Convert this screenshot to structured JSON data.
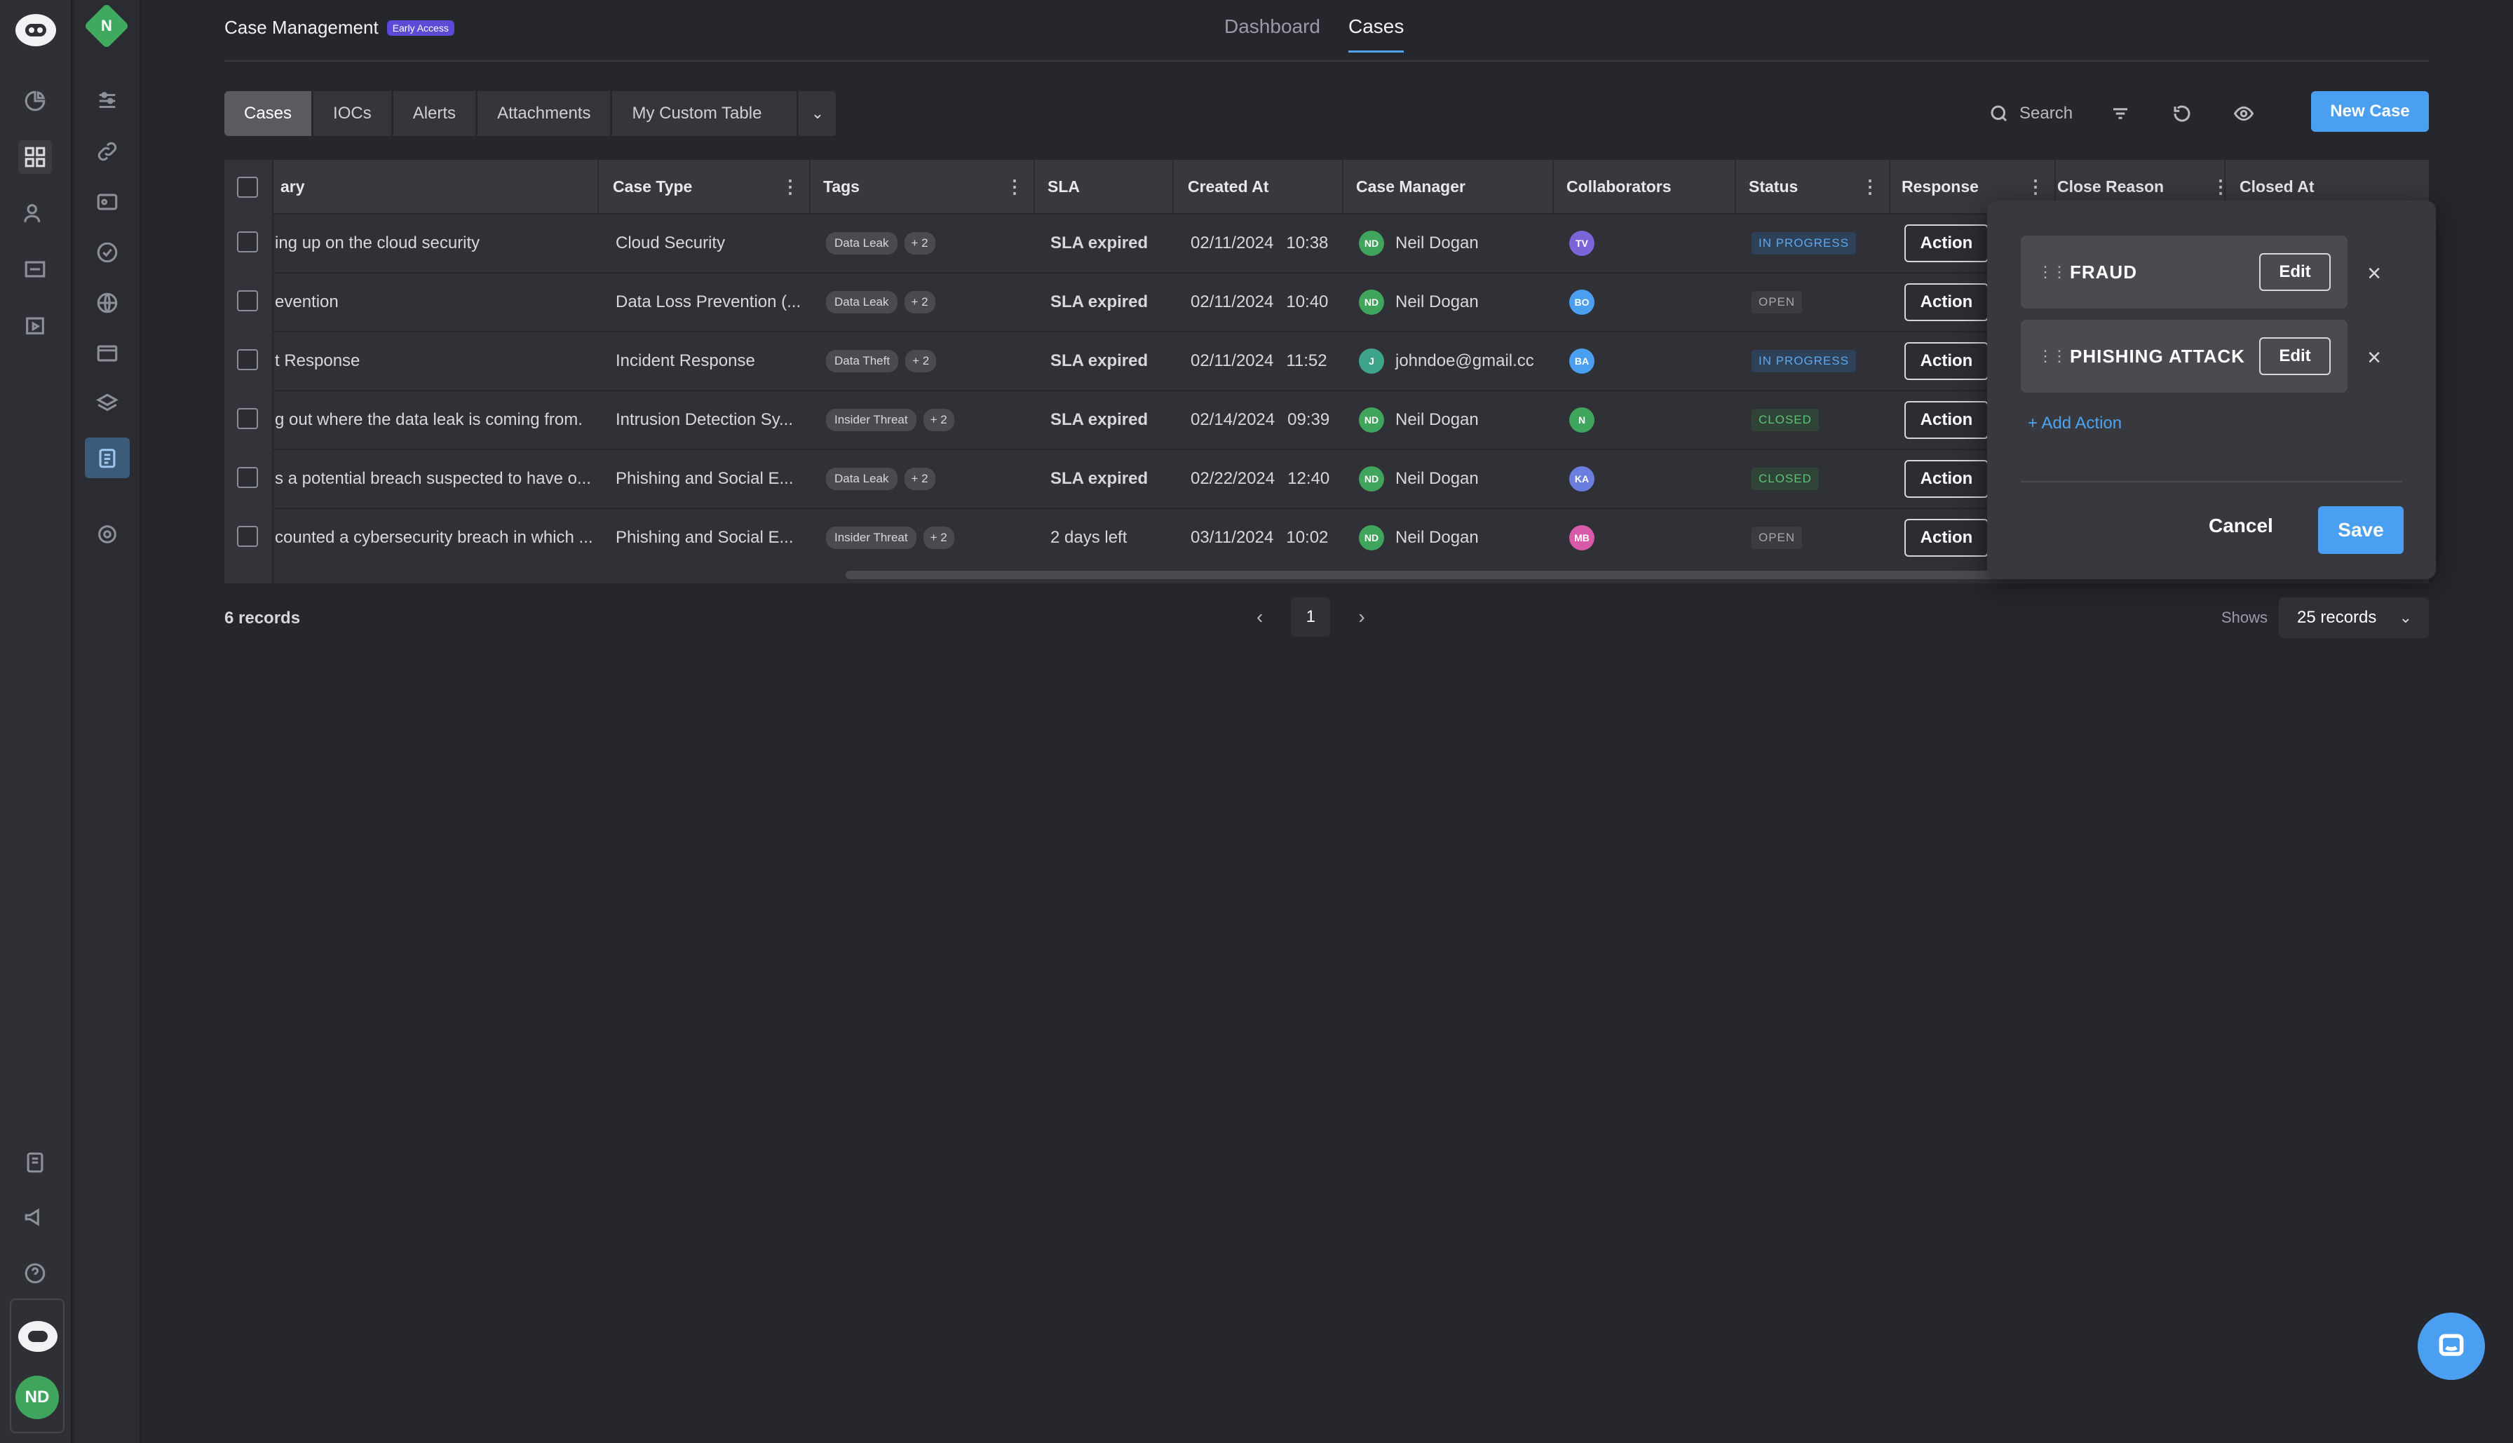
{
  "sidebar": {
    "workspace_initial": "N",
    "user_initials": "ND"
  },
  "header": {
    "title": "Case Management",
    "badge": "Early Access",
    "nav": [
      {
        "label": "Dashboard"
      },
      {
        "label": "Cases"
      }
    ]
  },
  "subtabs": [
    {
      "label": "Cases"
    },
    {
      "label": "IOCs"
    },
    {
      "label": "Alerts"
    },
    {
      "label": "Attachments"
    },
    {
      "label": "My Custom Table"
    }
  ],
  "toolbar": {
    "search_label": "Search",
    "new_case_label": "New Case"
  },
  "table": {
    "columns": [
      "ary",
      "Case Type",
      "Tags",
      "SLA",
      "Created At",
      "Case Manager",
      "Collaborators",
      "Status",
      "Response",
      "Close Reason",
      "Closed At"
    ],
    "action_label": "Action",
    "rows": [
      {
        "summary": "ing up on the cloud security",
        "case_type": "Cloud Security",
        "tag": "Data Leak",
        "more": "+ 2",
        "sla": "SLA expired",
        "date": "02/11/2024",
        "time": "10:38",
        "mgr_initials": "ND",
        "mgr": "Neil Dogan",
        "collab": "TV",
        "status": "IN PROGRESS"
      },
      {
        "summary": "evention",
        "case_type": "Data Loss Prevention (...",
        "tag": "Data Leak",
        "more": "+ 2",
        "sla": "SLA expired",
        "date": "02/11/2024",
        "time": "10:40",
        "mgr_initials": "ND",
        "mgr": "Neil Dogan",
        "collab": "BO",
        "status": "OPEN"
      },
      {
        "summary": "t Response",
        "case_type": "Incident Response",
        "tag": "Data Theft",
        "more": "+ 2",
        "sla": "SLA expired",
        "date": "02/11/2024",
        "time": "11:52",
        "mgr_initials": "J",
        "mgr": "johndoe@gmail.cc",
        "collab": "BA",
        "status": "IN PROGRESS"
      },
      {
        "summary": "g out where the data leak is coming from.",
        "case_type": "Intrusion Detection Sy...",
        "tag": "Insider Threat",
        "more": "+ 2",
        "sla": "SLA expired",
        "date": "02/14/2024",
        "time": "09:39",
        "mgr_initials": "ND",
        "mgr": "Neil Dogan",
        "collab": "N",
        "status": "CLOSED"
      },
      {
        "summary": "s a potential breach suspected to have o...",
        "case_type": "Phishing and Social E...",
        "tag": "Data Leak",
        "more": "+ 2",
        "sla": "SLA expired",
        "date": "02/22/2024",
        "time": "12:40",
        "mgr_initials": "ND",
        "mgr": "Neil Dogan",
        "collab": "KA",
        "status": "CLOSED"
      },
      {
        "summary": "counted a cybersecurity breach in which ...",
        "case_type": "Phishing and Social E...",
        "tag": "Insider Threat",
        "more": "+ 2",
        "sla": "2 days left",
        "date": "03/11/2024",
        "time": "10:02",
        "mgr_initials": "ND",
        "mgr": "Neil Dogan",
        "collab": "MB",
        "status": "OPEN"
      }
    ]
  },
  "popover": {
    "items": [
      {
        "label": "FRAUD"
      },
      {
        "label": "PHISHING ATTACK"
      }
    ],
    "edit_label": "Edit",
    "add_label": "+ Add Action",
    "cancel_label": "Cancel",
    "save_label": "Save"
  },
  "footer": {
    "records": "6 records",
    "page": "1",
    "shows_label": "Shows",
    "per_page": "25 records"
  },
  "colors": {
    "accent": "#4a9ff0",
    "sla_expired": "#f06a6a",
    "avatar_green": "#3fa55c"
  }
}
